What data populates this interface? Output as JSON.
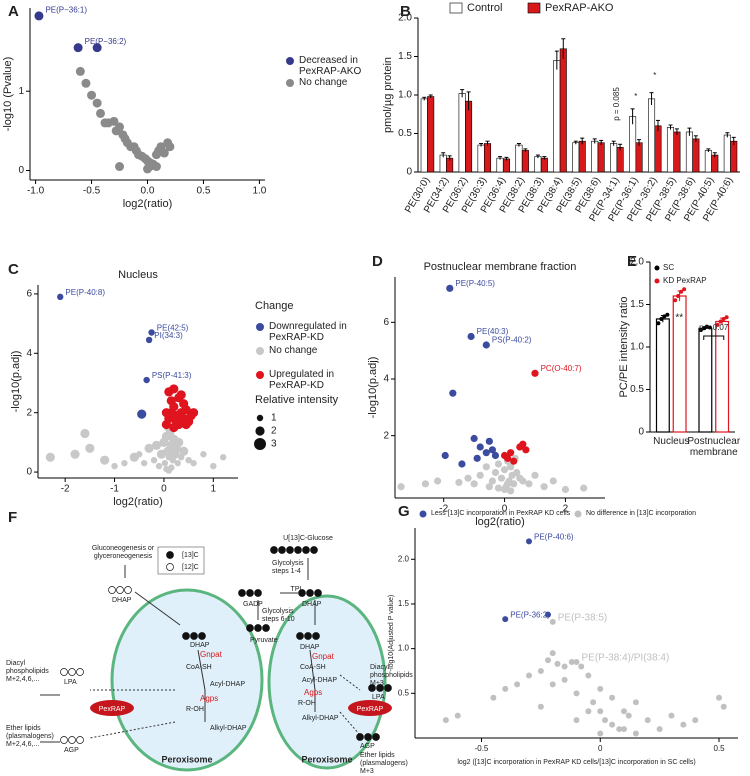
{
  "chart_data": [
    {
      "type": "scatter",
      "panel": "A",
      "xlabel": "log2(ratio)",
      "ylabel": "-log10 (Pvalue)",
      "xlim": [
        -1.05,
        1.05
      ],
      "ylim": [
        -0.12,
        2.05
      ],
      "xticks": [
        {
          "value": -1,
          "label": "-1.0"
        },
        -0.5,
        {
          "value": 0,
          "label": "0.0"
        },
        0.5,
        {
          "value": 1,
          "label": "1.0"
        }
      ],
      "yticks": [
        0,
        1
      ],
      "series": [
        {
          "name": "Decreased in PexRAP-AKO",
          "color": "#353a8c",
          "x": [
            -0.97,
            -0.62,
            -0.45
          ],
          "values": [
            1.95,
            1.55,
            1.55
          ],
          "labels": [
            "PE(P−36:1)",
            "PE(P−36:2)",
            null
          ]
        },
        {
          "name": "No change",
          "color": "#8a8a8a",
          "x": [
            -0.6,
            -0.55,
            -0.5,
            -0.45,
            -0.42,
            -0.38,
            -0.35,
            -0.3,
            -0.28,
            -0.25,
            -0.22,
            -0.2,
            -0.18,
            -0.15,
            -0.12,
            -0.1,
            -0.08,
            -0.05,
            -0.02,
            0.0,
            0.02,
            0.05,
            0.08,
            0.1,
            0.12,
            0.15,
            0.18,
            0.2,
            0.0,
            0.02,
            -0.25,
            0.08
          ],
          "values": [
            1.25,
            1.1,
            0.95,
            0.85,
            0.72,
            0.6,
            0.6,
            0.62,
            0.5,
            0.55,
            0.45,
            0.4,
            0.35,
            0.3,
            0.3,
            0.25,
            0.2,
            0.18,
            0.15,
            0.12,
            0.1,
            0.08,
            0.2,
            0.25,
            0.3,
            0.22,
            0.35,
            0.3,
            0.02,
            0.05,
            0.05,
            0.05
          ]
        }
      ]
    },
    {
      "type": "bar",
      "panel": "B",
      "ylabel": "pmol/µg protein",
      "categories": [
        "PE(30:0)",
        "PE(34:2)",
        "PE(36:2)",
        "PE(36:3)",
        "PE(36:4)",
        "PE(38:2)",
        "PE(38:3)",
        "PE(38:4)",
        "PE(38:5)",
        "PE(38:6)",
        "PE(P-34:1)",
        "PE(P-36:1)",
        "PE(P-36:2)",
        "PE(P-38:5)",
        "PE(P-38:6)",
        "PE(P-40:5)",
        "PE(P-40:6)"
      ],
      "ylim": [
        0,
        2.0
      ],
      "yticks": [
        0,
        0.5,
        {
          "value": 1,
          "label": "1.0"
        },
        1.5,
        {
          "value": 2,
          "label": "2.0"
        }
      ],
      "series": [
        {
          "name": "Control",
          "color": "#ffffff",
          "values": [
            0.95,
            0.22,
            1.02,
            0.35,
            0.18,
            0.35,
            0.2,
            1.45,
            0.38,
            0.4,
            0.37,
            0.72,
            0.95,
            0.58,
            0.52,
            0.28,
            0.48
          ],
          "errors": [
            0.02,
            0.03,
            0.05,
            0.02,
            0.02,
            0.02,
            0.02,
            0.12,
            0.02,
            0.03,
            0.03,
            0.1,
            0.08,
            0.03,
            0.05,
            0.02,
            0.03
          ]
        },
        {
          "name": "PexRAP-AKO",
          "color": "#d7191c",
          "values": [
            0.98,
            0.18,
            0.92,
            0.37,
            0.17,
            0.28,
            0.18,
            1.6,
            0.4,
            0.38,
            0.32,
            0.38,
            0.6,
            0.52,
            0.43,
            0.22,
            0.4
          ],
          "errors": [
            0.02,
            0.03,
            0.12,
            0.03,
            0.02,
            0.02,
            0.02,
            0.13,
            0.04,
            0.03,
            0.04,
            0.04,
            0.07,
            0.04,
            0.04,
            0.03,
            0.05
          ]
        }
      ],
      "annotations": [
        "p = 0.085",
        "*",
        "*"
      ]
    },
    {
      "type": "scatter",
      "panel": "C",
      "title": "Nucleus",
      "xlabel": "log2(ratio)",
      "ylabel": "-log10(p.adj)",
      "xlim": [
        -2.55,
        1.5
      ],
      "ylim": [
        -0.2,
        6.3
      ],
      "xticks": [
        -2,
        -1,
        0,
        1
      ],
      "yticks": [
        0,
        2,
        4,
        6
      ],
      "legend_title": "Change",
      "size_legend": {
        "title": "Relative intensity",
        "values": [
          1,
          2,
          3
        ]
      },
      "series": [
        {
          "name": "Downregulated in PexRAP-KD",
          "color": "#3b4ba0",
          "x": [
            -2.1,
            -0.25,
            -0.3,
            -0.35,
            -0.45
          ],
          "values": [
            5.9,
            4.7,
            4.45,
            3.1,
            1.95
          ],
          "sizes": [
            1,
            1,
            1,
            1,
            2
          ],
          "labels": [
            "PE(P-40:8)",
            "PE(42:5)",
            "PI(34:3)",
            "PS(P-41:3)",
            null
          ]
        },
        {
          "name": "No change",
          "color": "#c8c8c8",
          "x": [
            -2.3,
            -1.8,
            -1.6,
            -1.5,
            -1.2,
            -1.0,
            -0.8,
            -0.6,
            -0.5,
            -0.4,
            -0.3,
            -0.2,
            -0.15,
            -0.1,
            -0.05,
            0,
            0.02,
            0.05,
            0.08,
            0.1,
            0.12,
            0.15,
            0.18,
            0.2,
            0.22,
            0.25,
            0.28,
            0.3,
            0.35,
            0.4,
            0.5,
            0.6,
            0.8,
            1.0,
            1.2,
            0.05,
            0.1,
            0.15,
            0.2,
            0.1
          ],
          "values": [
            0.5,
            0.6,
            1.3,
            0.8,
            0.4,
            0.2,
            0.3,
            0.5,
            0.6,
            0.3,
            0.8,
            0.4,
            0.9,
            0.2,
            0.6,
            1.0,
            0.3,
            1.2,
            0.7,
            0.5,
            1.3,
            0.9,
            0.4,
            1.1,
            0.6,
            0.8,
            0.3,
            1.0,
            0.5,
            0.7,
            0.4,
            0.3,
            0.6,
            0.2,
            0.5,
            0.1,
            1.5,
            0.15,
            0.8,
            0.05
          ],
          "sizes": [
            2,
            2,
            2,
            2,
            2,
            1,
            1,
            2,
            1,
            1,
            2,
            1,
            2,
            1,
            2,
            2,
            1,
            2,
            2,
            1,
            2,
            2,
            1,
            2,
            2,
            2,
            1,
            2,
            1,
            2,
            1,
            1,
            1,
            1,
            1,
            1,
            2,
            1,
            2,
            1
          ]
        },
        {
          "name": "Upregulated in PexRAP-KD",
          "color": "#e0141e",
          "x": [
            0.05,
            0.1,
            0.15,
            0.2,
            0.25,
            0.3,
            0.35,
            0.4,
            0.45,
            0.5,
            0.55,
            0.6,
            0.1,
            0.2,
            0.3,
            0.4,
            0.15,
            0.25,
            0.35,
            0.05,
            0.45,
            0.2
          ],
          "values": [
            1.6,
            1.8,
            2.0,
            2.2,
            1.9,
            2.5,
            2.0,
            1.8,
            2.1,
            1.7,
            1.9,
            2.0,
            2.7,
            2.8,
            1.6,
            2.3,
            2.4,
            1.7,
            2.6,
            2.0,
            1.6,
            1.5
          ],
          "sizes": [
            2,
            2,
            2,
            2,
            2,
            2,
            2,
            2,
            2,
            2,
            2,
            2,
            2,
            2,
            2,
            2,
            2,
            2,
            2,
            2,
            2,
            2
          ]
        }
      ]
    },
    {
      "type": "scatter",
      "panel": "D",
      "title": "Postnuclear membrane fraction",
      "xlabel": "log2(ratio)",
      "ylabel": "-log10(p.adj)",
      "xlim": [
        -3.6,
        3.3
      ],
      "ylim": [
        -0.2,
        7.6
      ],
      "xticks": [
        -2,
        0,
        2
      ],
      "yticks": [
        2,
        4,
        6
      ],
      "series": [
        {
          "color": "#3b4ba0",
          "x": [
            -1.8,
            -1.1,
            -0.6,
            -1.7,
            -1.95,
            -1.4,
            -0.8,
            -0.6,
            -0.5,
            -0.4,
            -0.3,
            -1.0,
            -0.9
          ],
          "values": [
            7.2,
            5.5,
            5.2,
            3.5,
            1.3,
            1.0,
            1.6,
            1.4,
            1.8,
            1.5,
            1.3,
            1.9,
            1.2
          ],
          "labels": [
            "PE(P-40:5)",
            "PE(40:3)",
            "PS(P-40:2)",
            null,
            null,
            null,
            null,
            null,
            null,
            null,
            null,
            null,
            null
          ]
        },
        {
          "color": "#e0141e",
          "x": [
            1.0,
            0.0,
            0.1,
            0.2,
            0.5,
            0.6,
            0.7,
            0.3
          ],
          "values": [
            4.2,
            1.3,
            1.2,
            1.4,
            1.6,
            1.7,
            1.5,
            1.1
          ],
          "labels": [
            "PC(O-40:7)",
            null,
            null,
            null,
            null,
            null,
            null,
            null
          ]
        },
        {
          "color": "#c8c8c8",
          "x": [
            -3.4,
            -2.6,
            -2.2,
            -1.5,
            -1.2,
            -1.0,
            -0.8,
            -0.6,
            -0.4,
            -0.3,
            -0.2,
            -0.1,
            0,
            0.05,
            0.1,
            0.15,
            0.2,
            0.25,
            0.3,
            0.4,
            0.5,
            0.6,
            0.8,
            1.0,
            1.3,
            1.6,
            2.0,
            2.6,
            -0.5,
            0.0,
            0.1,
            0.2,
            -0.2,
            0.35
          ],
          "values": [
            0.2,
            0.3,
            0.4,
            0.35,
            0.5,
            0.3,
            0.6,
            0.9,
            0.4,
            0.7,
            1.0,
            0.5,
            0.8,
            0.2,
            1.1,
            0.4,
            0.9,
            0.6,
            0.3,
            0.7,
            0.5,
            0.4,
            0.3,
            0.6,
            0.2,
            0.4,
            0.1,
            0.15,
            0.2,
            0.1,
            0.3,
            0.05,
            0.15,
            1.2
          ]
        }
      ]
    },
    {
      "type": "bar",
      "panel": "E",
      "ylabel": "PC/PE intensity ratio",
      "outline": true,
      "categories": [
        "Nucleus",
        "Postnuclear membrane"
      ],
      "ylim": [
        0,
        2.0
      ],
      "yticks": [
        0,
        0.5,
        {
          "value": 1,
          "label": "1.0"
        },
        1.5,
        {
          "value": 2,
          "label": "2.0"
        }
      ],
      "series": [
        {
          "name": "SC",
          "color": "#000000",
          "values": [
            1.33,
            1.22
          ],
          "errors": [
            0.04,
            0.02
          ],
          "points": [
            [
              1.28,
              1.33,
              1.36,
              1.38
            ],
            [
              1.2,
              1.22,
              1.24,
              1.23
            ]
          ]
        },
        {
          "name": "KD PexRAP",
          "color": "#e0141e",
          "values": [
            1.6,
            1.3
          ],
          "errors": [
            0.06,
            0.04
          ],
          "points": [
            [
              1.55,
              1.6,
              1.65,
              1.68
            ],
            [
              1.26,
              1.3,
              1.33,
              1.35
            ]
          ]
        }
      ],
      "annotations": [
        "**",
        "p = 0.07"
      ]
    },
    {
      "type": "scatter",
      "panel": "G",
      "xlabel": "log2 ([13]C incorporation in PexRAP KD cells/[13]C incorporation in SC cells)",
      "ylabel": "-log10(Adjusted P value)",
      "xlim": [
        -0.78,
        0.58
      ],
      "ylim": [
        0,
        2.35
      ],
      "xticks": [
        -0.5,
        0,
        0.5
      ],
      "yticks": [
        0.5,
        {
          "value": 1,
          "label": "1.0"
        },
        1.5,
        {
          "value": 2,
          "label": "2.0"
        }
      ],
      "legend_position": "top",
      "series": [
        {
          "name": "Less [13]C incorporation in PexRAP KD cells",
          "color": "#3b4ba0",
          "x": [
            -0.3,
            -0.4,
            -0.22
          ],
          "values": [
            2.2,
            1.33,
            1.38
          ],
          "labels": [
            "PE(P-40:6)",
            "PE(P-36:2)",
            null
          ]
        },
        {
          "name": "No difference in [13]C incorporation",
          "color": "#c0c0c0",
          "x": [
            -0.65,
            -0.6,
            -0.45,
            -0.4,
            -0.35,
            -0.3,
            -0.25,
            -0.2,
            -0.2,
            -0.15,
            -0.12,
            -0.1,
            -0.08,
            -0.05,
            -0.03,
            0,
            0.02,
            0.05,
            0.08,
            0.1,
            0.12,
            0.15,
            0.2,
            0.25,
            0.3,
            0.35,
            0.4,
            0.5,
            0.52,
            -0.1,
            -0.05,
            0,
            0.05,
            0.1,
            -0.15,
            -0.2,
            0.15,
            -0.25,
            0.0,
            -0.1,
            -0.22,
            -0.18
          ],
          "values": [
            0.2,
            0.25,
            0.45,
            0.55,
            0.6,
            0.7,
            0.75,
            0.95,
            1.3,
            0.8,
            0.85,
            0.85,
            0.8,
            0.7,
            0.4,
            0.3,
            0.2,
            0.15,
            0.1,
            0.3,
            0.25,
            0.4,
            0.2,
            0.1,
            0.25,
            0.15,
            0.2,
            0.45,
            0.35,
            0.5,
            0.3,
            0.55,
            0.45,
            0.1,
            0.65,
            0.6,
            0.05,
            0.35,
            0.05,
            0.2,
            0.87,
            0.83
          ],
          "labels": [
            null,
            null,
            null,
            null,
            null,
            null,
            null,
            null,
            "PE(P-38:5)",
            null,
            null,
            "PE(P-38:4)/PI(38:4)",
            null,
            null,
            null,
            null,
            null,
            null,
            null,
            null,
            null,
            null,
            null,
            null,
            null,
            null,
            null,
            null,
            null,
            null,
            null,
            null,
            null,
            null,
            null,
            null,
            null,
            null,
            null,
            null,
            null,
            null
          ]
        }
      ]
    }
  ],
  "diagram": {
    "panel": "F",
    "glucose": "U[13]C-Glucose",
    "glycolysis_1_4": "Glycolysis steps 1-4",
    "tpi": "TPI",
    "gluconeogenesis": "Gluconeogenesis or glyceroneogenesis",
    "c13": "[13]C",
    "c12": "[12]C",
    "dhap_cytosol": "DHAP",
    "gadp": "GADP",
    "dhap_tpi": "DHAP",
    "glycolysis_6_10": "Glycolysis steps 6-10",
    "pyruvate": "Pyruvate",
    "left": {
      "dhap": "DHAP",
      "gnpat": "Gnpat",
      "coa_sh": "CoA-SH",
      "acyl_dhap": "Acyl-DHAP",
      "agps": "Agps",
      "r_oh": "R-OH",
      "alkyl_dhap": "Alkyl-DHAP",
      "pexrap": "PexRAP",
      "lpa": "LPA",
      "agp": "AGP",
      "diacyl": "Diacyl phospholipids M+2,4,6,...",
      "ether": "Ether lipids (plasmalogens) M+2,4,6,...",
      "peroxisome": "Peroxisome"
    },
    "right": {
      "dhap": "DHAP",
      "gnpat": "Gnpat",
      "coa_sh": "CoA-SH",
      "acyl_dhap": "Acyl-DHAP",
      "agps": "Agps",
      "r_oh": "R-OH",
      "alkyl_dhap": "Alkyl-DHAP",
      "pexrap": "PexRAP",
      "lpa": "LPA",
      "agp": "AGP",
      "diacyl": "Diacyl phospholipids M+3",
      "ether": "Ether lipids (plasmalogens) M+3",
      "peroxisome": "Peroxisome"
    }
  }
}
